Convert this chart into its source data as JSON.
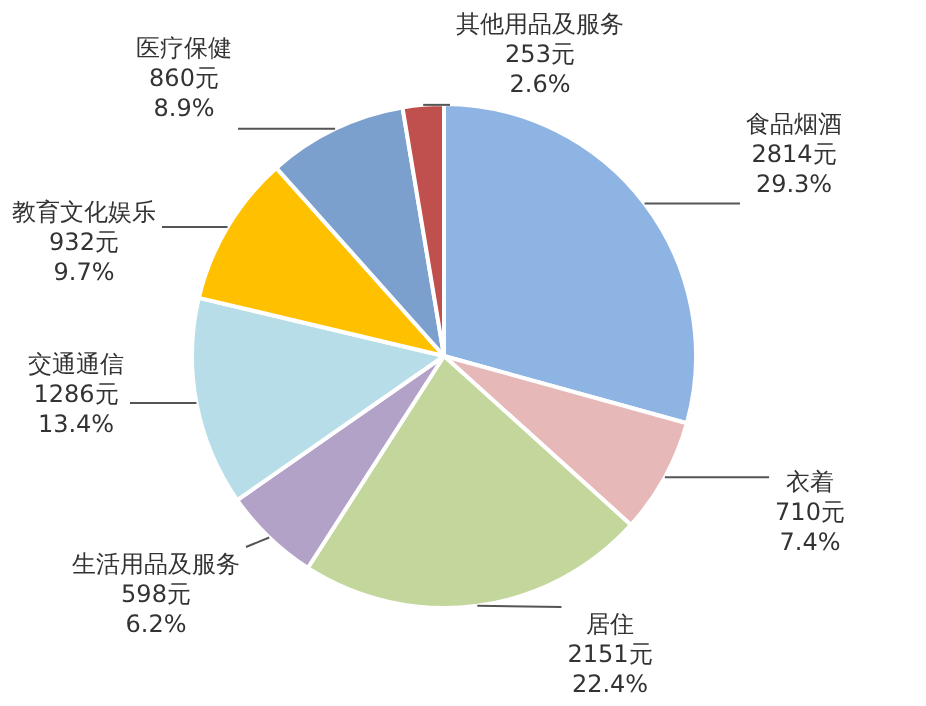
{
  "chart_data": {
    "type": "pie",
    "categories": [
      "食品烟酒",
      "衣着",
      "居住",
      "生活用品及服务",
      "交通通信",
      "教育文化娱乐",
      "医疗保健",
      "其他用品及服务"
    ],
    "values": [
      2814,
      710,
      2151,
      598,
      1286,
      932,
      860,
      253
    ],
    "value_labels": [
      "2814元\n29.3%",
      "710元\n7.4%",
      "2151元\n22.4%",
      "598元\n6.2%",
      "1286元\n13.4%",
      "932元\n9.7%",
      "860元\n8.9%",
      "253元\n2.6%"
    ],
    "colors": [
      "#8db4e2",
      "#e6b9b8",
      "#c3d69b",
      "#b3a2c7",
      "#b7dee8",
      "#ffc000",
      "#7ba0cd",
      "#c0504d"
    ]
  }
}
